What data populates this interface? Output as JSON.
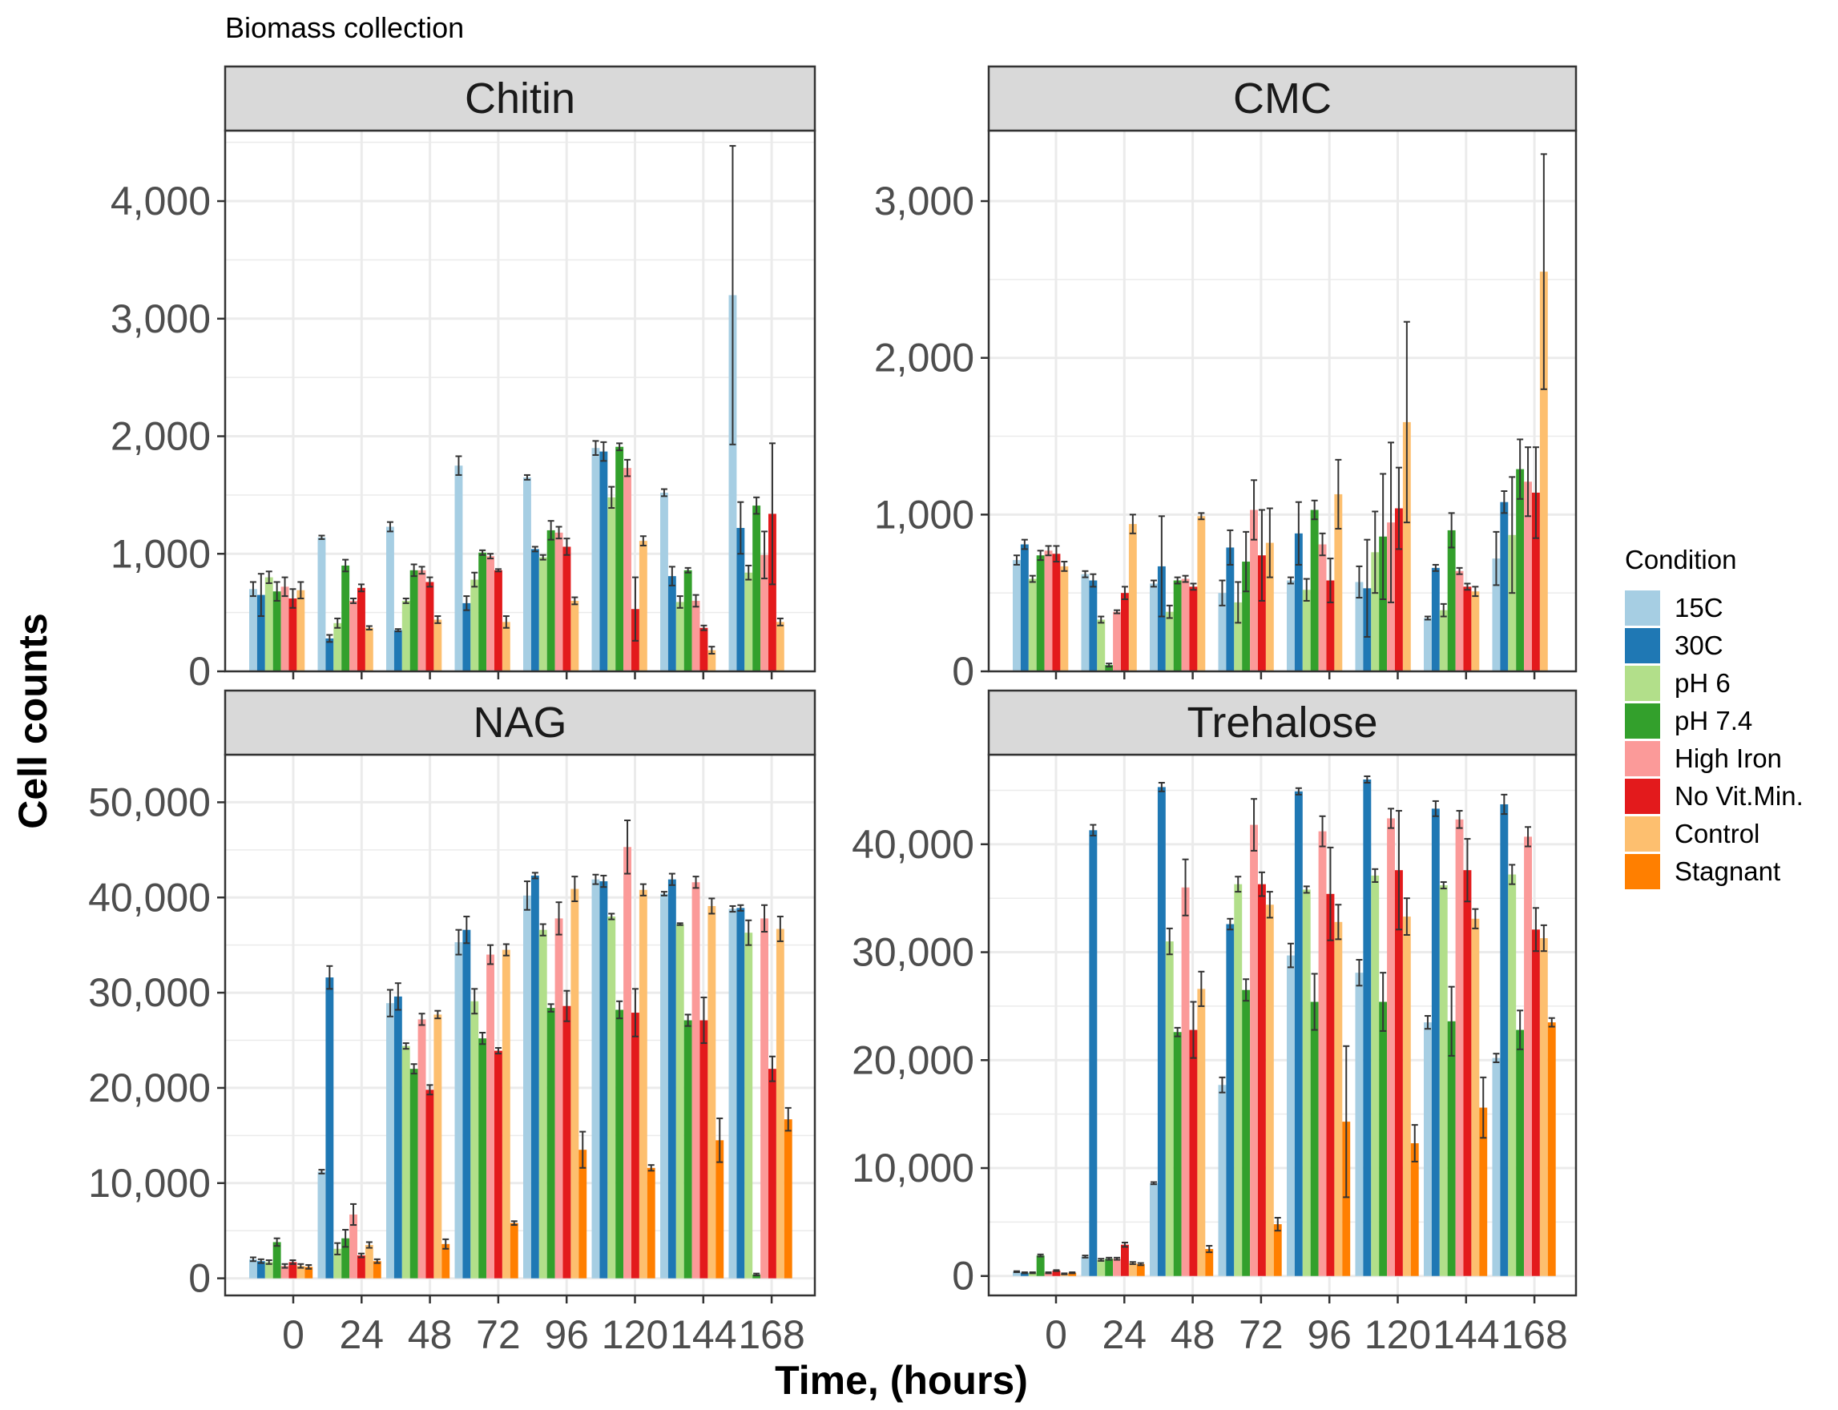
{
  "colors": {
    "15C": "#a6cee3",
    "30C": "#1f78b4",
    "pH 6": "#b2df8a",
    "pH 7.4": "#33a02c",
    "High Iron": "#fb9a99",
    "No Vit.Min.": "#e31a1c",
    "Control": "#fdbf6f",
    "Stagnant": "#ff7f00",
    "panel_border": "#333333",
    "strip_fill": "#d9d9d9",
    "grid": "#ebebeb",
    "error_bar": "#333333"
  },
  "chart_data": {
    "type": "bar",
    "title": "Biomass collection",
    "xlabel": "Time, (hours)",
    "ylabel": "Cell counts",
    "x_ticks": [
      "0",
      "24",
      "48",
      "72",
      "96",
      "120",
      "144",
      "168"
    ],
    "legend": {
      "title": "Condition",
      "position": "right",
      "entries": [
        "15C",
        "30C",
        "pH 6",
        "pH 7.4",
        "High Iron",
        "No Vit.Min.",
        "Control",
        "Stagnant"
      ]
    },
    "grid": true,
    "error_bars": true,
    "panels": [
      {
        "name": "Chitin",
        "ylim": [
          0,
          4600
        ],
        "yticks": [
          0,
          1000,
          2000,
          3000,
          4000
        ],
        "ytick_labels": [
          "0",
          "1,000",
          "2,000",
          "3,000",
          "4,000"
        ],
        "groups": [
          {
            "values": [
              null,
              700,
              650,
              800,
              680,
              720,
              620,
              690
            ],
            "errors": [
              null,
              60,
              180,
              50,
              80,
              80,
              80,
              70
            ]
          },
          {
            "values": [
              null,
              1140,
              280,
              410,
              900,
              600,
              710,
              370
            ],
            "errors": [
              null,
              15,
              30,
              40,
              50,
              20,
              30,
              15
            ]
          },
          {
            "values": [
              null,
              1230,
              350,
              600,
              860,
              860,
              760,
              440
            ],
            "errors": [
              null,
              40,
              10,
              20,
              50,
              30,
              40,
              30
            ]
          },
          {
            "values": [
              null,
              1750,
              580,
              780,
              1010,
              980,
              860,
              420
            ],
            "errors": [
              null,
              80,
              60,
              60,
              20,
              20,
              10,
              50
            ]
          },
          {
            "values": [
              null,
              1650,
              1040,
              970,
              1200,
              1180,
              1060,
              600
            ],
            "errors": [
              null,
              20,
              20,
              20,
              80,
              50,
              70,
              30
            ]
          },
          {
            "values": [
              null,
              1900,
              1870,
              1480,
              1910,
              1730,
              530,
              1110
            ],
            "errors": [
              null,
              60,
              80,
              90,
              30,
              70,
              270,
              40
            ]
          },
          {
            "values": [
              null,
              1520,
              810,
              590,
              860,
              600,
              370,
              180
            ],
            "errors": [
              null,
              30,
              80,
              50,
              20,
              50,
              20,
              30
            ]
          },
          {
            "values": [
              null,
              3200,
              1220,
              840,
              1410,
              990,
              1340,
              420
            ],
            "errors": [
              null,
              1270,
              220,
              60,
              70,
              200,
              600,
              30
            ]
          }
        ]
      },
      {
        "name": "CMC",
        "ylim": [
          0,
          3450
        ],
        "yticks": [
          0,
          1000,
          2000,
          3000
        ],
        "ytick_labels": [
          "0",
          "1,000",
          "2,000",
          "3,000"
        ],
        "groups": [
          {
            "values": [
              null,
              710,
              810,
              590,
              740,
              770,
              750,
              670
            ],
            "errors": [
              null,
              30,
              30,
              20,
              30,
              30,
              50,
              30
            ]
          },
          {
            "values": [
              null,
              620,
              580,
              330,
              40,
              380,
              500,
              940
            ],
            "errors": [
              null,
              20,
              40,
              20,
              10,
              10,
              40,
              60
            ]
          },
          {
            "values": [
              null,
              560,
              670,
              380,
              580,
              590,
              540,
              990
            ],
            "errors": [
              null,
              20,
              320,
              40,
              20,
              20,
              20,
              20
            ]
          },
          {
            "values": [
              null,
              500,
              790,
              440,
              700,
              1030,
              740,
              820
            ],
            "errors": [
              null,
              80,
              110,
              130,
              190,
              190,
              290,
              220
            ]
          },
          {
            "values": [
              null,
              580,
              880,
              520,
              1030,
              810,
              580,
              1130
            ],
            "errors": [
              null,
              20,
              200,
              70,
              60,
              70,
              140,
              220
            ]
          },
          {
            "values": [
              null,
              570,
              530,
              760,
              860,
              950,
              1040,
              1590
            ],
            "errors": [
              null,
              100,
              310,
              260,
              400,
              510,
              260,
              640
            ]
          },
          {
            "values": [
              null,
              340,
              660,
              390,
              900,
              640,
              540,
              510
            ],
            "errors": [
              null,
              10,
              20,
              40,
              110,
              20,
              20,
              30
            ]
          },
          {
            "values": [
              null,
              720,
              1080,
              870,
              1290,
              1210,
              1140,
              2550
            ],
            "errors": [
              null,
              170,
              70,
              370,
              190,
              220,
              290,
              750
            ]
          }
        ]
      },
      {
        "name": "NAG",
        "ylim": [
          -1800,
          55000
        ],
        "yticks": [
          0,
          10000,
          20000,
          30000,
          40000,
          50000
        ],
        "ytick_labels": [
          "0",
          "10,000",
          "20,000",
          "30,000",
          "40,000",
          "50,000"
        ],
        "groups": [
          {
            "values": [
              null,
              2000,
              1800,
              1700,
              3800,
              1300,
              1700,
              1300
            ],
            "errors": [
              null,
              200,
              200,
              200,
              400,
              200,
              200,
              200
            ]
          },
          {
            "values": [
              null,
              11200,
              31600,
              3100,
              4200,
              6700,
              2400,
              3500
            ],
            "errors": [
              null,
              200,
              1200,
              600,
              900,
              1100,
              200,
              300
            ]
          },
          {
            "values": [
              null,
              28900,
              29600,
              24400,
              22000,
              27200,
              19800,
              27700
            ],
            "errors": [
              null,
              1400,
              1400,
              300,
              500,
              600,
              500,
              400
            ]
          },
          {
            "values": [
              null,
              35300,
              36600,
              29100,
              25200,
              34000,
              23900,
              34500
            ],
            "errors": [
              null,
              1300,
              1400,
              1300,
              600,
              1000,
              300,
              600
            ]
          },
          {
            "values": [
              null,
              40200,
              42300,
              36600,
              28400,
              37800,
              28600,
              40900
            ],
            "errors": [
              null,
              1500,
              300,
              600,
              400,
              1700,
              1600,
              1300
            ]
          },
          {
            "values": [
              null,
              41900,
              41700,
              38000,
              28200,
              45300,
              27900,
              40800
            ],
            "errors": [
              null,
              500,
              600,
              300,
              900,
              2800,
              2500,
              600
            ]
          },
          {
            "values": [
              null,
              40400,
              41900,
              37200,
              27100,
              41600,
              27100,
              39100
            ],
            "errors": [
              null,
              200,
              600,
              100,
              600,
              600,
              2400,
              800
            ]
          },
          {
            "values": [
              null,
              38800,
              38900,
              36300,
              400,
              37800,
              22000,
              36700
            ],
            "errors": [
              null,
              300,
              300,
              1300,
              100,
              1400,
              1300,
              1300
            ]
          }
        ],
        "extra_bars": {
          "Stagnant": [
            1200,
            1800,
            3600,
            5800,
            13500,
            11600,
            14500,
            16700
          ],
          "Stagnant_errors": [
            200,
            200,
            500,
            200,
            1900,
            300,
            2300,
            1200
          ]
        }
      },
      {
        "name": "Trehalose",
        "ylim": [
          -1800,
          48300
        ],
        "yticks": [
          0,
          10000,
          20000,
          30000,
          40000
        ],
        "ytick_labels": [
          "0",
          "10,000",
          "20,000",
          "30,000",
          "40,000"
        ],
        "groups": [
          {
            "values": [
              null,
              400,
              300,
              300,
              1900,
              300,
              500,
              200
            ],
            "errors": [
              null,
              50,
              50,
              50,
              100,
              50,
              50,
              50
            ]
          },
          {
            "values": [
              null,
              1800,
              41300,
              1500,
              1600,
              1600,
              2900,
              1200
            ],
            "errors": [
              null,
              100,
              500,
              100,
              100,
              100,
              200,
              100
            ]
          },
          {
            "values": [
              null,
              8600,
              45300,
              31000,
              22600,
              36000,
              22800,
              26600
            ],
            "errors": [
              null,
              100,
              400,
              1200,
              400,
              2600,
              2600,
              1600
            ]
          },
          {
            "values": [
              null,
              17700,
              32600,
              36300,
              26500,
              41800,
              36300,
              34400
            ],
            "errors": [
              null,
              700,
              500,
              700,
              1000,
              2400,
              1100,
              1200
            ]
          },
          {
            "values": [
              null,
              29700,
              44900,
              35800,
              25400,
              41200,
              35400,
              32800
            ],
            "errors": [
              null,
              1100,
              300,
              300,
              2600,
              1400,
              4300,
              1600
            ]
          },
          {
            "values": [
              null,
              28100,
              46000,
              37100,
              25400,
              42400,
              37600,
              33300
            ],
            "errors": [
              null,
              1200,
              300,
              600,
              2700,
              900,
              5500,
              1700
            ]
          },
          {
            "values": [
              null,
              23500,
              43300,
              36200,
              23600,
              42300,
              37600,
              33100
            ],
            "errors": [
              null,
              600,
              700,
              300,
              3200,
              800,
              2900,
              900
            ]
          },
          {
            "values": [
              null,
              20200,
              43700,
              37200,
              22800,
              40700,
              32100,
              31300
            ],
            "errors": [
              null,
              400,
              900,
              900,
              1800,
              900,
              2000,
              1200
            ]
          }
        ],
        "extra_bars": {
          "Stagnant": [
            300,
            1100,
            2500,
            4800,
            14300,
            12300,
            15600,
            23500
          ],
          "Stagnant_errors": [
            50,
            100,
            300,
            600,
            7000,
            1700,
            2800,
            400
          ]
        }
      }
    ]
  }
}
